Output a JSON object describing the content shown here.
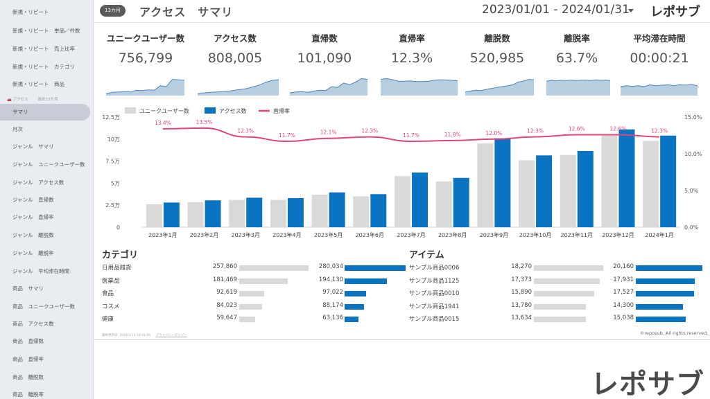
{
  "sidebar": {
    "items": [
      {
        "label": "新規・リピート"
      },
      {
        "label": "新規・リピート　単価／件数"
      },
      {
        "label": "新規・リピート　売上比率"
      },
      {
        "label": "新規・リピート　カテゴリ"
      },
      {
        "label": "新規・リピート　商品"
      },
      {
        "label": "サマリ",
        "active": true
      },
      {
        "label": "月次"
      },
      {
        "label": "ジャンル　サマリ"
      },
      {
        "label": "ジャンル　ユニークユーザー数"
      },
      {
        "label": "ジャンル　アクセス数"
      },
      {
        "label": "ジャンル　直帰数"
      },
      {
        "label": "ジャンル　直帰率"
      },
      {
        "label": "ジャンル　離脱数"
      },
      {
        "label": "ジャンル　離脱率"
      },
      {
        "label": "ジャンル　平均滞在時間"
      },
      {
        "label": "商品　サマリ"
      },
      {
        "label": "商品　ユニークユーザー数"
      },
      {
        "label": "商品　アクセス数"
      },
      {
        "label": "商品　直帰数"
      },
      {
        "label": "商品　直帰率"
      },
      {
        "label": "商品　離脱数"
      },
      {
        "label": "商品　離脱率"
      }
    ],
    "section": {
      "icon": "car-icon",
      "label": "アクセス",
      "sub": "過去13カ月"
    }
  },
  "header": {
    "badge": "13カ月",
    "title": "アクセス　サマリ",
    "date_range": "2023/01/01 - 2024/01/31",
    "brand": "レポサブ"
  },
  "kpis": [
    {
      "label": "ユニークユーザー数",
      "value": "756,799",
      "spark": [
        0.1,
        0.18,
        0.2,
        0.22,
        0.2,
        0.3,
        0.28,
        0.32,
        0.3,
        0.55,
        0.5,
        0.9,
        0.88,
        0.85
      ]
    },
    {
      "label": "アクセス数",
      "value": "808,005",
      "spark": [
        0.1,
        0.15,
        0.18,
        0.2,
        0.22,
        0.25,
        0.3,
        0.35,
        0.4,
        0.5,
        0.6,
        0.75,
        0.85,
        0.88
      ]
    },
    {
      "label": "直帰数",
      "value": "101,090",
      "spark": [
        0.15,
        0.2,
        0.22,
        0.18,
        0.25,
        0.3,
        0.28,
        0.5,
        0.45,
        0.7,
        0.6,
        0.75,
        0.95,
        0.9
      ]
    },
    {
      "label": "直帰率",
      "value": "12.3%",
      "spark": [
        0.9,
        0.95,
        0.88,
        0.8,
        0.8,
        0.82,
        0.78,
        0.78,
        0.8,
        0.85,
        0.88,
        0.87,
        0.85,
        0.82
      ]
    },
    {
      "label": "離脱数",
      "value": "520,985",
      "spark": [
        0.2,
        0.25,
        0.3,
        0.28,
        0.35,
        0.4,
        0.45,
        0.5,
        0.55,
        0.6,
        0.75,
        0.8,
        0.9,
        0.88
      ]
    },
    {
      "label": "離脱率",
      "value": "63.7%",
      "spark": [
        0.8,
        0.85,
        0.82,
        0.85,
        0.83,
        0.86,
        0.84,
        0.85,
        0.86,
        0.84,
        0.87,
        0.85,
        0.86,
        0.84
      ]
    },
    {
      "label": "平均滞在時間",
      "value": "00:00:21",
      "spark": [
        0.5,
        0.55,
        0.52,
        0.55,
        0.5,
        0.6,
        0.55,
        0.58,
        0.6,
        0.55,
        0.6,
        0.58,
        0.62,
        0.55
      ]
    }
  ],
  "chart_data": {
    "type": "bar",
    "categories": [
      "2023年1月",
      "2023年2月",
      "2023年3月",
      "2023年4月",
      "2023年5月",
      "2023年6月",
      "2023年7月",
      "2023年8月",
      "2023年9月",
      "2023年10月",
      "2023年11月",
      "2023年12月",
      "2024年1月"
    ],
    "series": [
      {
        "name": "ユニークユーザー数",
        "type": "bar",
        "color": "#d9d9d9",
        "values": [
          26000,
          28500,
          31000,
          31000,
          37000,
          35000,
          58000,
          52000,
          95000,
          76000,
          82000,
          104000,
          98000
        ]
      },
      {
        "name": "アクセス数",
        "type": "bar",
        "color": "#0b74c2",
        "values": [
          28000,
          30500,
          33500,
          33000,
          39500,
          37500,
          62000,
          56000,
          101000,
          81500,
          86500,
          111000,
          104000
        ]
      },
      {
        "name": "直帰率",
        "type": "line",
        "color": "#e0457b",
        "axis": "right",
        "values": [
          13.4,
          13.5,
          12.3,
          11.7,
          12.1,
          12.3,
          11.7,
          11.8,
          12.0,
          12.3,
          12.6,
          12.6,
          12.3
        ]
      }
    ],
    "point_labels": [
      "13.4%",
      "13.5%",
      "12.3%",
      "11.7%",
      "12.1%",
      "12.3%",
      "11.7%",
      "11.8%",
      "12.0%",
      "12.3%",
      "12.6%",
      "12.6%",
      "12.3%"
    ],
    "y_left": {
      "ticks": [
        "0",
        "2.5万",
        "5万",
        "7.5万",
        "10万",
        "12.5万"
      ],
      "max": 125000
    },
    "y_right": {
      "ticks": [
        "0.0%",
        "5.0%",
        "10.0%",
        "15.0%"
      ],
      "max": 15
    },
    "legend_position": "top-left"
  },
  "category_table": {
    "title": "カテゴリ",
    "rows": [
      {
        "name": "日用品雑貨",
        "v1": "257,860",
        "n1": 257860,
        "v2": "280,034",
        "n2": 280034
      },
      {
        "name": "医薬品",
        "v1": "181,469",
        "n1": 181469,
        "v2": "194,130",
        "n2": 194130
      },
      {
        "name": "食品",
        "v1": "92,619",
        "n1": 92619,
        "v2": "97,022",
        "n2": 97022
      },
      {
        "name": "コスメ",
        "v1": "84,023",
        "n1": 84023,
        "v2": "88,174",
        "n2": 88174
      },
      {
        "name": "健康",
        "v1": "59,647",
        "n1": 59647,
        "v2": "63,136",
        "n2": 63136
      }
    ]
  },
  "item_table": {
    "title": "アイテム",
    "rows": [
      {
        "name": "サンプル商品0006",
        "v1": "18,270",
        "n1": 18270,
        "v2": "20,160",
        "n2": 20160
      },
      {
        "name": "サンプル商品1125",
        "v1": "17,373",
        "n1": 17373,
        "v2": "17,931",
        "n2": 17931
      },
      {
        "name": "サンプル商品0010",
        "v1": "15,890",
        "n1": 15890,
        "v2": "17,527",
        "n2": 17527
      },
      {
        "name": "サンプル商品1941",
        "v1": "13,780",
        "n1": 13780,
        "v2": "14,300",
        "n2": 14300
      },
      {
        "name": "サンプル商品0015",
        "v1": "13,634",
        "n1": 13634,
        "v2": "15,038",
        "n2": 15038
      }
    ]
  },
  "footer": {
    "updated": "最終更新日: 2024/2/13 18:41:06",
    "policy": "プライバシーポリシー",
    "copyright": "©reposub. All rights reserved."
  },
  "watermark": "レポサブ",
  "colors": {
    "accent": "#0b74c2",
    "gray_bar": "#d9d9d9",
    "line": "#e0457b",
    "spark_fill": "#b7cde0",
    "spark_line": "#4f86b8",
    "sidebar_bg": "#e9ecf1"
  }
}
